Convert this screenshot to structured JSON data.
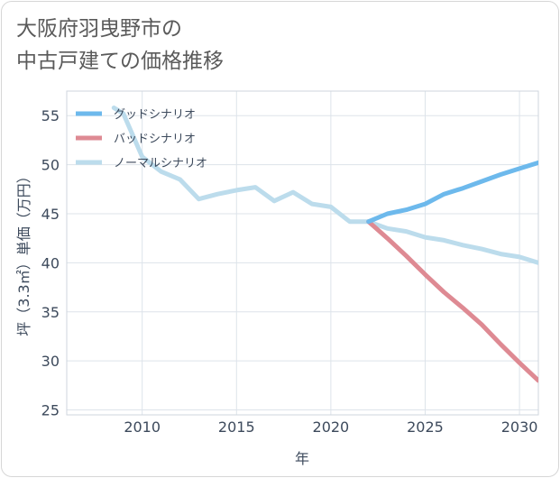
{
  "chart_data": {
    "type": "line",
    "title": "大阪府羽曳野市の\n中古戸建ての価格推移",
    "xlabel": "年",
    "ylabel": "坪（3.3㎡）単価（万円）",
    "xlim": [
      2006,
      2031
    ],
    "ylim": [
      24.5,
      57.5
    ],
    "xticks": [
      2010,
      2015,
      2020,
      2025,
      2030
    ],
    "yticks": [
      25,
      30,
      35,
      40,
      45,
      50,
      55
    ],
    "grid": true,
    "legend_position": "top-left",
    "series": [
      {
        "name": "グッドシナリオ",
        "color": "#6db9ec",
        "x": [
          2022,
          2023,
          2024,
          2025,
          2026,
          2027,
          2028,
          2029,
          2030,
          2031
        ],
        "y": [
          44.2,
          45.0,
          45.4,
          46.0,
          47.0,
          47.6,
          48.3,
          49.0,
          49.6,
          50.2
        ]
      },
      {
        "name": "バッドシナリオ",
        "color": "#de8a93",
        "x": [
          2022,
          2023,
          2024,
          2025,
          2026,
          2027,
          2028,
          2029,
          2030,
          2031
        ],
        "y": [
          44.2,
          42.5,
          40.7,
          38.8,
          37.0,
          35.4,
          33.7,
          31.7,
          29.8,
          28.0
        ]
      },
      {
        "name": "ノーマルシナリオ",
        "color": "#bcdcec",
        "x": [
          2008.5,
          2009,
          2010,
          2011,
          2012,
          2013,
          2014,
          2015,
          2016,
          2017,
          2018,
          2019,
          2020,
          2021,
          2022,
          2023,
          2024,
          2025,
          2026,
          2027,
          2028,
          2029,
          2030,
          2031
        ],
        "y": [
          55.8,
          55.2,
          50.8,
          49.3,
          48.5,
          46.5,
          47.0,
          47.4,
          47.7,
          46.3,
          47.2,
          46.0,
          45.7,
          44.2,
          44.2,
          43.5,
          43.2,
          42.6,
          42.3,
          41.8,
          41.4,
          40.9,
          40.6,
          40.0
        ]
      }
    ]
  }
}
